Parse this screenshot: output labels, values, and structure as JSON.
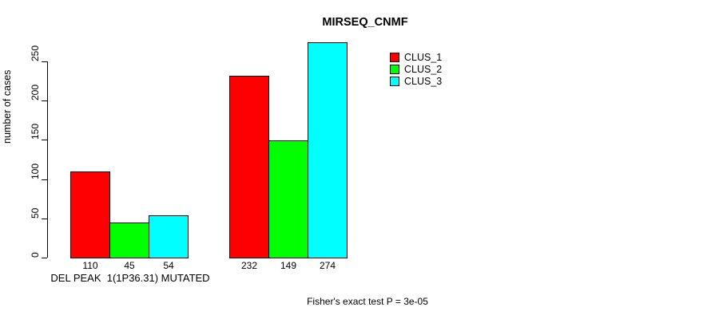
{
  "figure": {
    "title": "MIRSEQ_CNMF",
    "annotation": "Fisher's exact test P = 3e-05"
  },
  "chart_data": {
    "type": "bar",
    "title": "MIRSEQ_CNMF",
    "ylabel": "number of cases",
    "xlabel": "DEL PEAK  1(1P36.31) MUTATED",
    "ylim": [
      0,
      275
    ],
    "yticks": [
      0,
      50,
      100,
      150,
      200,
      250
    ],
    "grid": false,
    "legend_position": "top-right",
    "groups": [
      {
        "values": [
          110,
          45,
          54
        ]
      },
      {
        "values": [
          232,
          149,
          274
        ]
      }
    ],
    "series": [
      {
        "name": "CLUS_1",
        "color": "#ff0000",
        "values": [
          110,
          232
        ]
      },
      {
        "name": "CLUS_2",
        "color": "#00ff00",
        "values": [
          45,
          149
        ]
      },
      {
        "name": "CLUS_3",
        "color": "#00ffff",
        "values": [
          54,
          274
        ]
      }
    ],
    "annotation": "Fisher's exact test P = 3e-05"
  }
}
